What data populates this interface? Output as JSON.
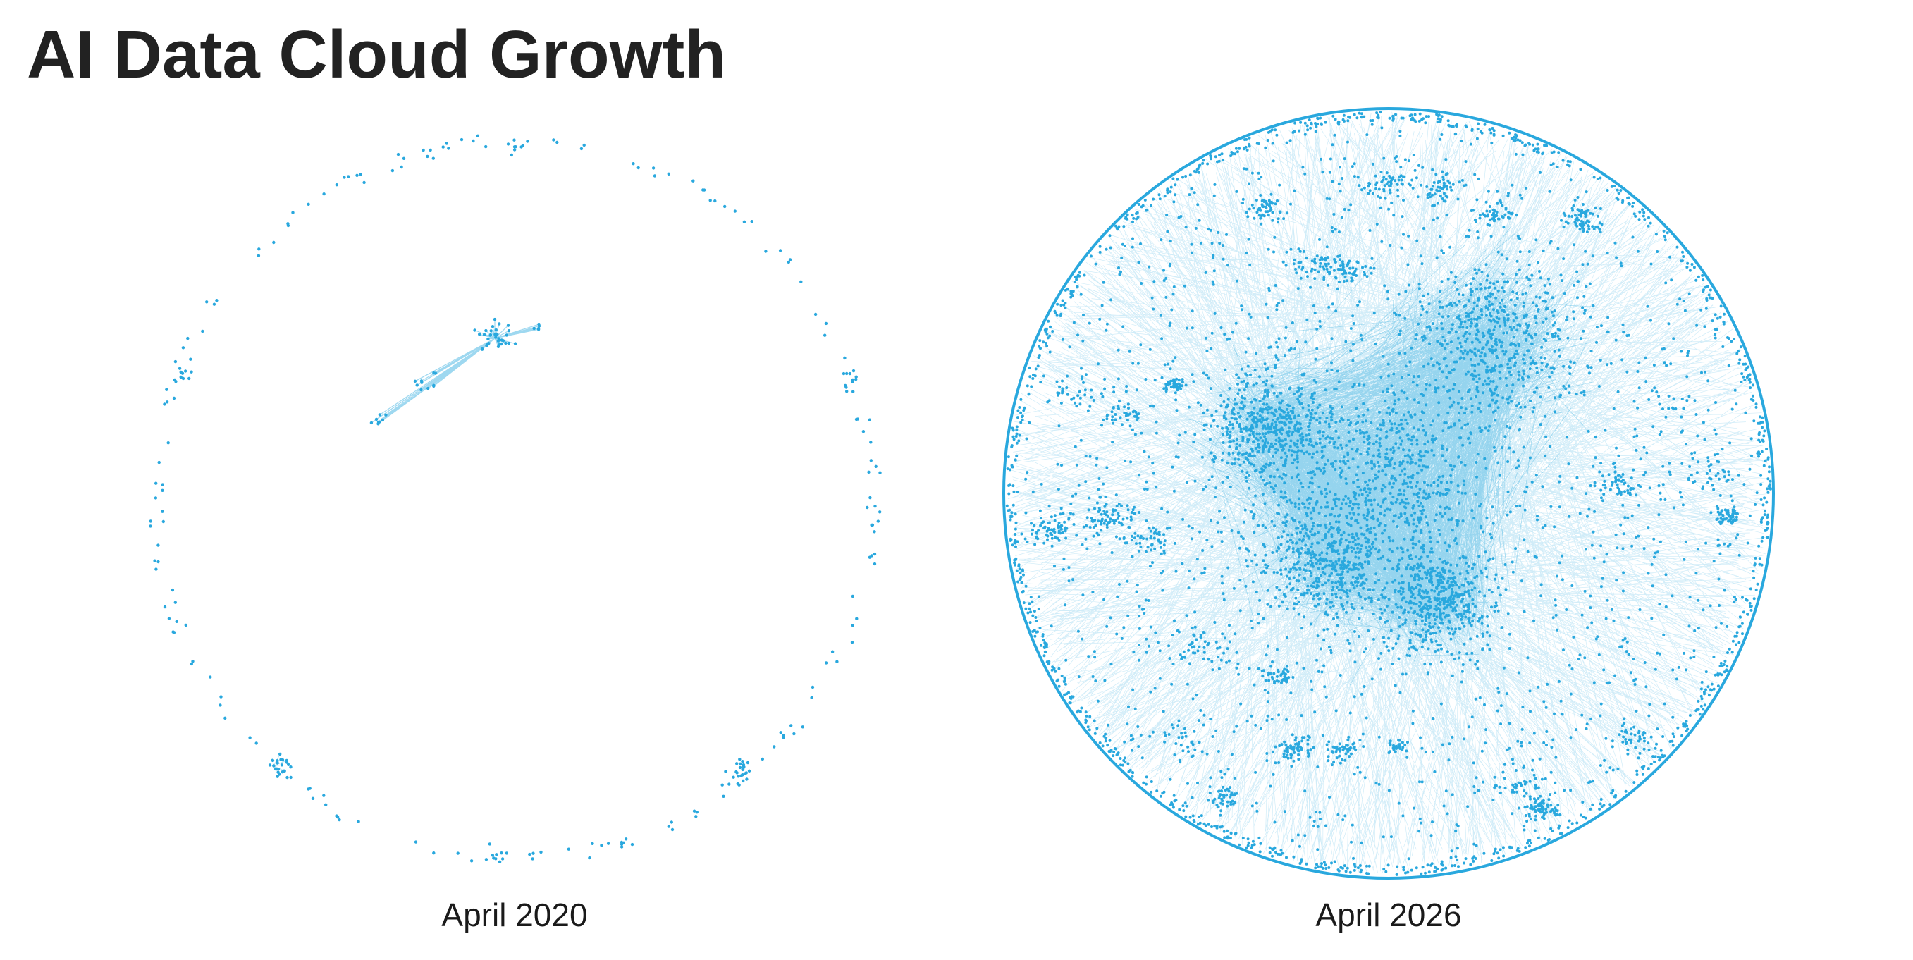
{
  "title": "AI Data Cloud Growth",
  "accent_color": "#29a8de",
  "panels": [
    {
      "caption": "April 2020",
      "density": "sparse"
    },
    {
      "caption": "April 2026",
      "density": "dense"
    }
  ]
}
